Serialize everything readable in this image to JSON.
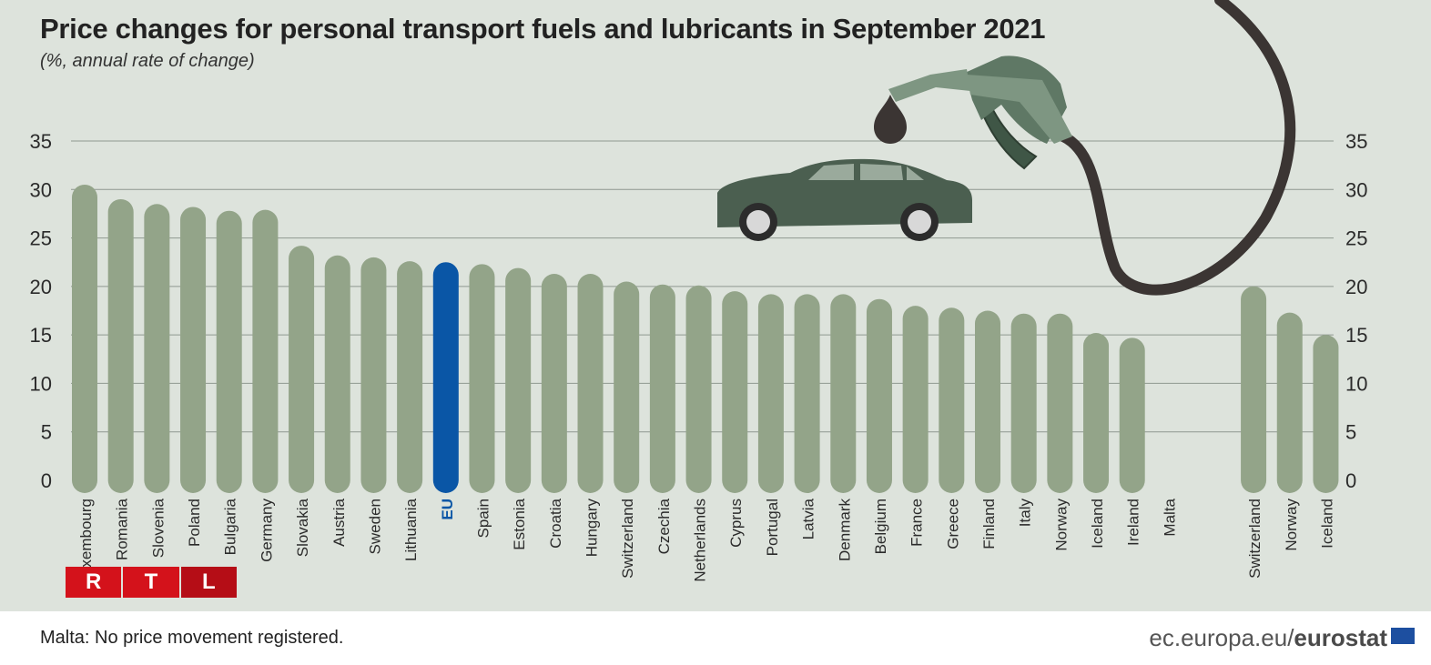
{
  "chart_data": {
    "type": "bar",
    "title": "Price changes for personal transport fuels and lubricants in September 2021",
    "subtitle": "(%, annual rate of change)",
    "categories": [
      "Luxembourg",
      "Romania",
      "Slovenia",
      "Poland",
      "Bulgaria",
      "Germany",
      "Slovakia",
      "Austria",
      "Sweden",
      "Lithuania",
      "EU",
      "Spain",
      "Estonia",
      "Croatia",
      "Hungary",
      "Switzerland",
      "Czechia",
      "Netherlands",
      "Cyprus",
      "Portugal",
      "Latvia",
      "Denmark",
      "Belgium",
      "France",
      "Greece",
      "Finland",
      "Italy",
      "Norway",
      "Iceland",
      "Ireland",
      "Malta",
      "Switzerland",
      "Norway",
      "Iceland"
    ],
    "values": [
      30.5,
      29.0,
      28.5,
      28.2,
      27.8,
      27.9,
      24.2,
      23.2,
      23.0,
      22.6,
      22.5,
      22.3,
      21.9,
      21.3,
      21.3,
      20.5,
      20.2,
      20.1,
      19.5,
      19.2,
      19.2,
      19.2,
      18.7,
      18.0,
      17.8,
      17.5,
      17.2,
      17.2,
      15.2,
      14.7,
      0,
      20.0,
      17.3,
      15.0
    ],
    "highlight": "EU",
    "ylim": [
      0,
      35
    ],
    "yticks": [
      0,
      5,
      10,
      15,
      20,
      25,
      30,
      35
    ],
    "grid": true,
    "legend": "none",
    "colors": {
      "bar": "#93a489",
      "highlight": "#0a56a6",
      "grid": "#8f9890",
      "background": "#dde3dc"
    }
  },
  "footnote": "Malta: No price movement registered.",
  "source": {
    "prefix": "ec.europa.eu/",
    "brand": "eurostat"
  },
  "logo": {
    "letters": [
      "R",
      "T",
      "L"
    ]
  },
  "icons": [
    "fuel-nozzle-icon",
    "oil-drop-icon",
    "car-icon",
    "eu-flag-icon"
  ]
}
